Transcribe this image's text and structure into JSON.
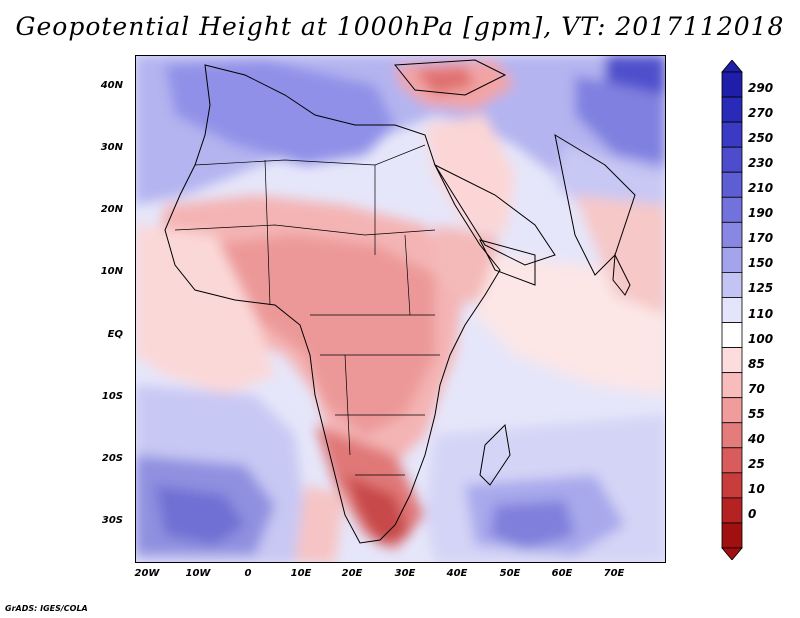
{
  "title": "Geopotential Height at 1000hPa [gpm], VT: 2017112018",
  "credit": "GrADS: IGES/COLA",
  "map": {
    "lat_labels": [
      "40N",
      "30N",
      "20N",
      "10N",
      "EQ",
      "10S",
      "20S",
      "30S"
    ],
    "lon_labels": [
      "20W",
      "10W",
      "0",
      "10E",
      "20E",
      "30E",
      "40E",
      "50E",
      "60E",
      "70E"
    ]
  },
  "colorbar": {
    "labels": [
      "290",
      "270",
      "250",
      "230",
      "210",
      "190",
      "170",
      "150",
      "125",
      "110",
      "100",
      "85",
      "70",
      "55",
      "40",
      "25",
      "10",
      "0"
    ],
    "colors": [
      "#1e1eaa",
      "#2a2ab8",
      "#3a3ac4",
      "#4c4ccc",
      "#5e5ed4",
      "#7272dc",
      "#8888e4",
      "#a4a4ec",
      "#c4c4f4",
      "#e4e4fa",
      "#ffffff",
      "#fcdcdc",
      "#f8bcbc",
      "#f09c9c",
      "#e47c7c",
      "#d85c5c",
      "#c83c3c",
      "#b42222",
      "#a01010"
    ]
  }
}
